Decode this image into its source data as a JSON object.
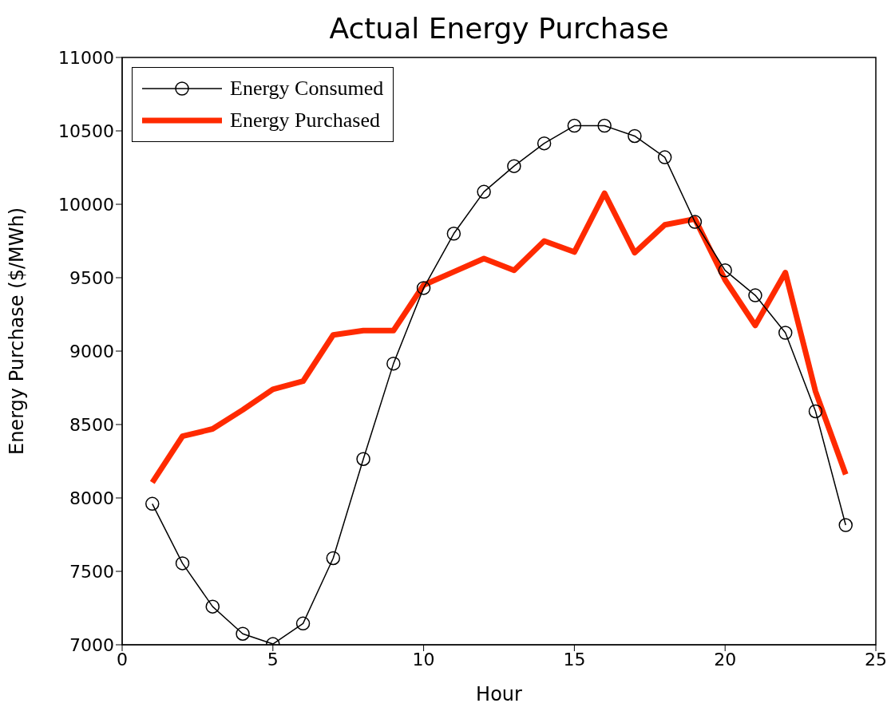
{
  "chart_data": {
    "type": "line",
    "title": "Actual Energy Purchase",
    "xlabel": "Hour",
    "ylabel": "Energy Purchase ($/MWh)",
    "x": [
      1,
      2,
      3,
      4,
      5,
      6,
      7,
      8,
      9,
      10,
      11,
      12,
      13,
      14,
      15,
      16,
      17,
      18,
      19,
      20,
      21,
      22,
      23,
      24
    ],
    "series": [
      {
        "name": "Energy Consumed",
        "color": "#000000",
        "marker": "circle",
        "values": [
          7960,
          7555,
          7260,
          7075,
          7005,
          7145,
          7590,
          8265,
          8915,
          9430,
          9800,
          10085,
          10260,
          10415,
          10535,
          10535,
          10465,
          10320,
          9880,
          9550,
          9380,
          9125,
          8590,
          7815
        ]
      },
      {
        "name": "Energy Purchased",
        "color": "#ff2a00",
        "marker": "none",
        "values": [
          8105,
          8420,
          8470,
          8600,
          8740,
          8795,
          9110,
          9140,
          9140,
          9450,
          9540,
          9630,
          9550,
          9750,
          9675,
          10075,
          9670,
          9860,
          9900,
          9485,
          9175,
          9535,
          8725,
          8160
        ]
      }
    ],
    "xlim": [
      0,
      25
    ],
    "xticks": [
      0,
      5,
      10,
      15,
      20,
      25
    ],
    "ylim": [
      7000,
      11000
    ],
    "yticks": [
      7000,
      7500,
      8000,
      8500,
      9000,
      9500,
      10000,
      10500,
      11000
    ],
    "grid": false,
    "legend": "top left"
  }
}
